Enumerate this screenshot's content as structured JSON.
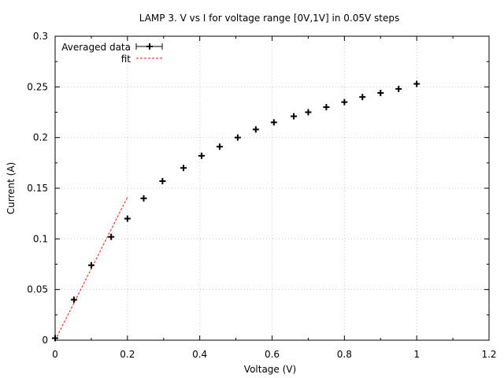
{
  "chart_data": {
    "type": "scatter",
    "title": "LAMP 3. V vs I for voltage range [0V,1V] in 0.05V steps",
    "xlabel": "Voltage (V)",
    "ylabel": "Current (A)",
    "xlim": [
      0,
      1.2
    ],
    "ylim": [
      0,
      0.3
    ],
    "xticks": [
      0,
      0.2,
      0.4,
      0.6,
      0.8,
      1,
      1.2
    ],
    "xtick_labels": [
      "0",
      "0.2",
      "0.4",
      "0.6",
      "0.8",
      "1",
      "1.2"
    ],
    "yticks": [
      0,
      0.05,
      0.1,
      0.15,
      0.2,
      0.25,
      0.3
    ],
    "ytick_labels": [
      "0",
      "0.05",
      "0.1",
      "0.15",
      "0.2",
      "0.25",
      "0.3"
    ],
    "grid": true,
    "legend_position": "top-left",
    "series": [
      {
        "name": "Averaged data",
        "style": "points-with-xerrorbars",
        "color": "#000000",
        "points": [
          {
            "x": 0.0,
            "y": 0.002
          },
          {
            "x": 0.052,
            "y": 0.04
          },
          {
            "x": 0.1,
            "y": 0.074
          },
          {
            "x": 0.155,
            "y": 0.102
          },
          {
            "x": 0.2,
            "y": 0.12
          },
          {
            "x": 0.245,
            "y": 0.14
          },
          {
            "x": 0.297,
            "y": 0.157
          },
          {
            "x": 0.355,
            "y": 0.17
          },
          {
            "x": 0.405,
            "y": 0.182
          },
          {
            "x": 0.455,
            "y": 0.191
          },
          {
            "x": 0.505,
            "y": 0.2
          },
          {
            "x": 0.555,
            "y": 0.208
          },
          {
            "x": 0.605,
            "y": 0.215
          },
          {
            "x": 0.66,
            "y": 0.221
          },
          {
            "x": 0.7,
            "y": 0.225
          },
          {
            "x": 0.75,
            "y": 0.23
          },
          {
            "x": 0.8,
            "y": 0.235
          },
          {
            "x": 0.85,
            "y": 0.24
          },
          {
            "x": 0.9,
            "y": 0.244
          },
          {
            "x": 0.95,
            "y": 0.248
          },
          {
            "x": 1.0,
            "y": 0.253
          }
        ]
      },
      {
        "name": "fit",
        "style": "dashed-line",
        "color": "#e41a1c",
        "points": [
          {
            "x": 0.0,
            "y": 0.0
          },
          {
            "x": 0.2,
            "y": 0.141
          }
        ]
      }
    ]
  }
}
